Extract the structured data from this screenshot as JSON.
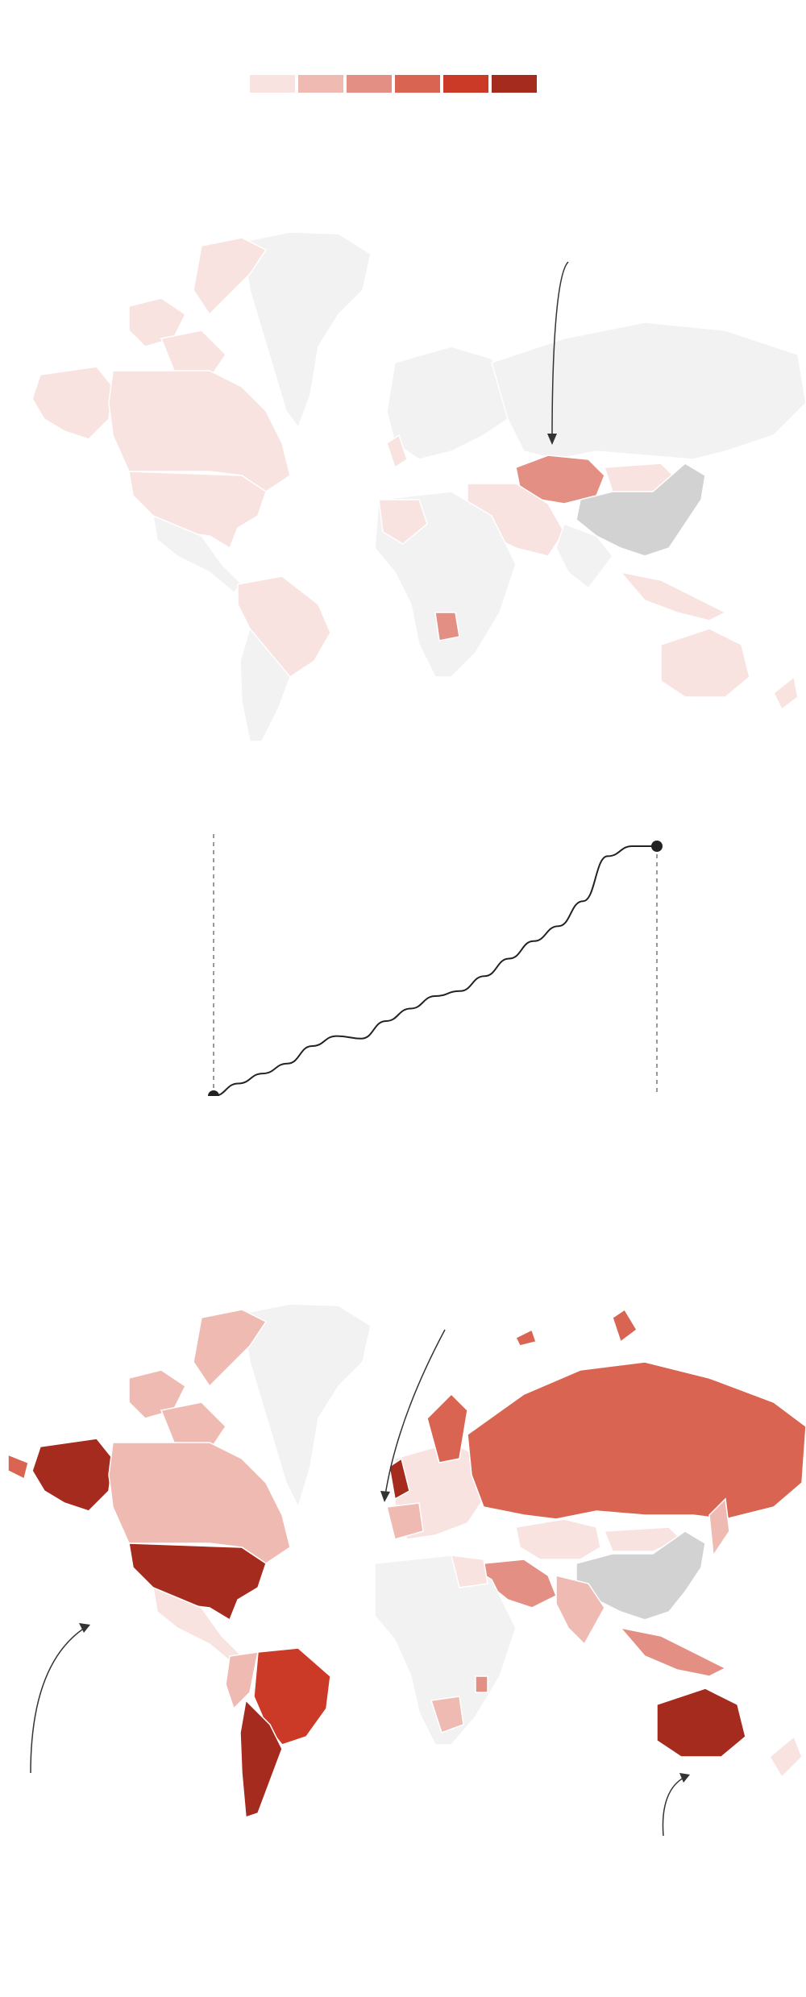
{
  "colors": {
    "scale": [
      "#f8e3e0",
      "#eebab2",
      "#e38f84",
      "#d96452",
      "#cb3a26",
      "#a52b1e"
    ],
    "no_data": "#f2f2f2",
    "highlight_grey": "#d2d2d2",
    "annotation": "#333333",
    "line": "#222222"
  },
  "legend": {
    "swatch_count": 6
  },
  "map_top": {
    "name": "world-choropleth-before",
    "highlighted_regions": [
      {
        "region": "kazakhstan",
        "level": 3
      },
      {
        "region": "china",
        "level": "grey"
      },
      {
        "region": "angola",
        "level": 3
      },
      {
        "region": "north-america",
        "level": 1
      },
      {
        "region": "south-america-north",
        "level": 1
      },
      {
        "region": "australia",
        "level": 1
      }
    ]
  },
  "line_chart": {
    "type": "line",
    "values": [
      0,
      5,
      9,
      13,
      20,
      24,
      23,
      30,
      35,
      40,
      42,
      48,
      55,
      62,
      68,
      78,
      96,
      100,
      100
    ]
  },
  "map_bottom": {
    "name": "world-choropleth-after",
    "highlighted_regions": [
      {
        "region": "alaska",
        "level": 6
      },
      {
        "region": "usa",
        "level": 6
      },
      {
        "region": "canada",
        "level": 2
      },
      {
        "region": "greenland-west",
        "level": 2
      },
      {
        "region": "brazil",
        "level": 5
      },
      {
        "region": "argentina",
        "level": 6
      },
      {
        "region": "russia",
        "level": 4
      },
      {
        "region": "uk",
        "level": 6
      },
      {
        "region": "scandinavia",
        "level": 4
      },
      {
        "region": "australia",
        "level": 6
      },
      {
        "region": "china",
        "level": "grey"
      },
      {
        "region": "kazakhstan",
        "level": 1
      },
      {
        "region": "india",
        "level": 2
      }
    ]
  }
}
